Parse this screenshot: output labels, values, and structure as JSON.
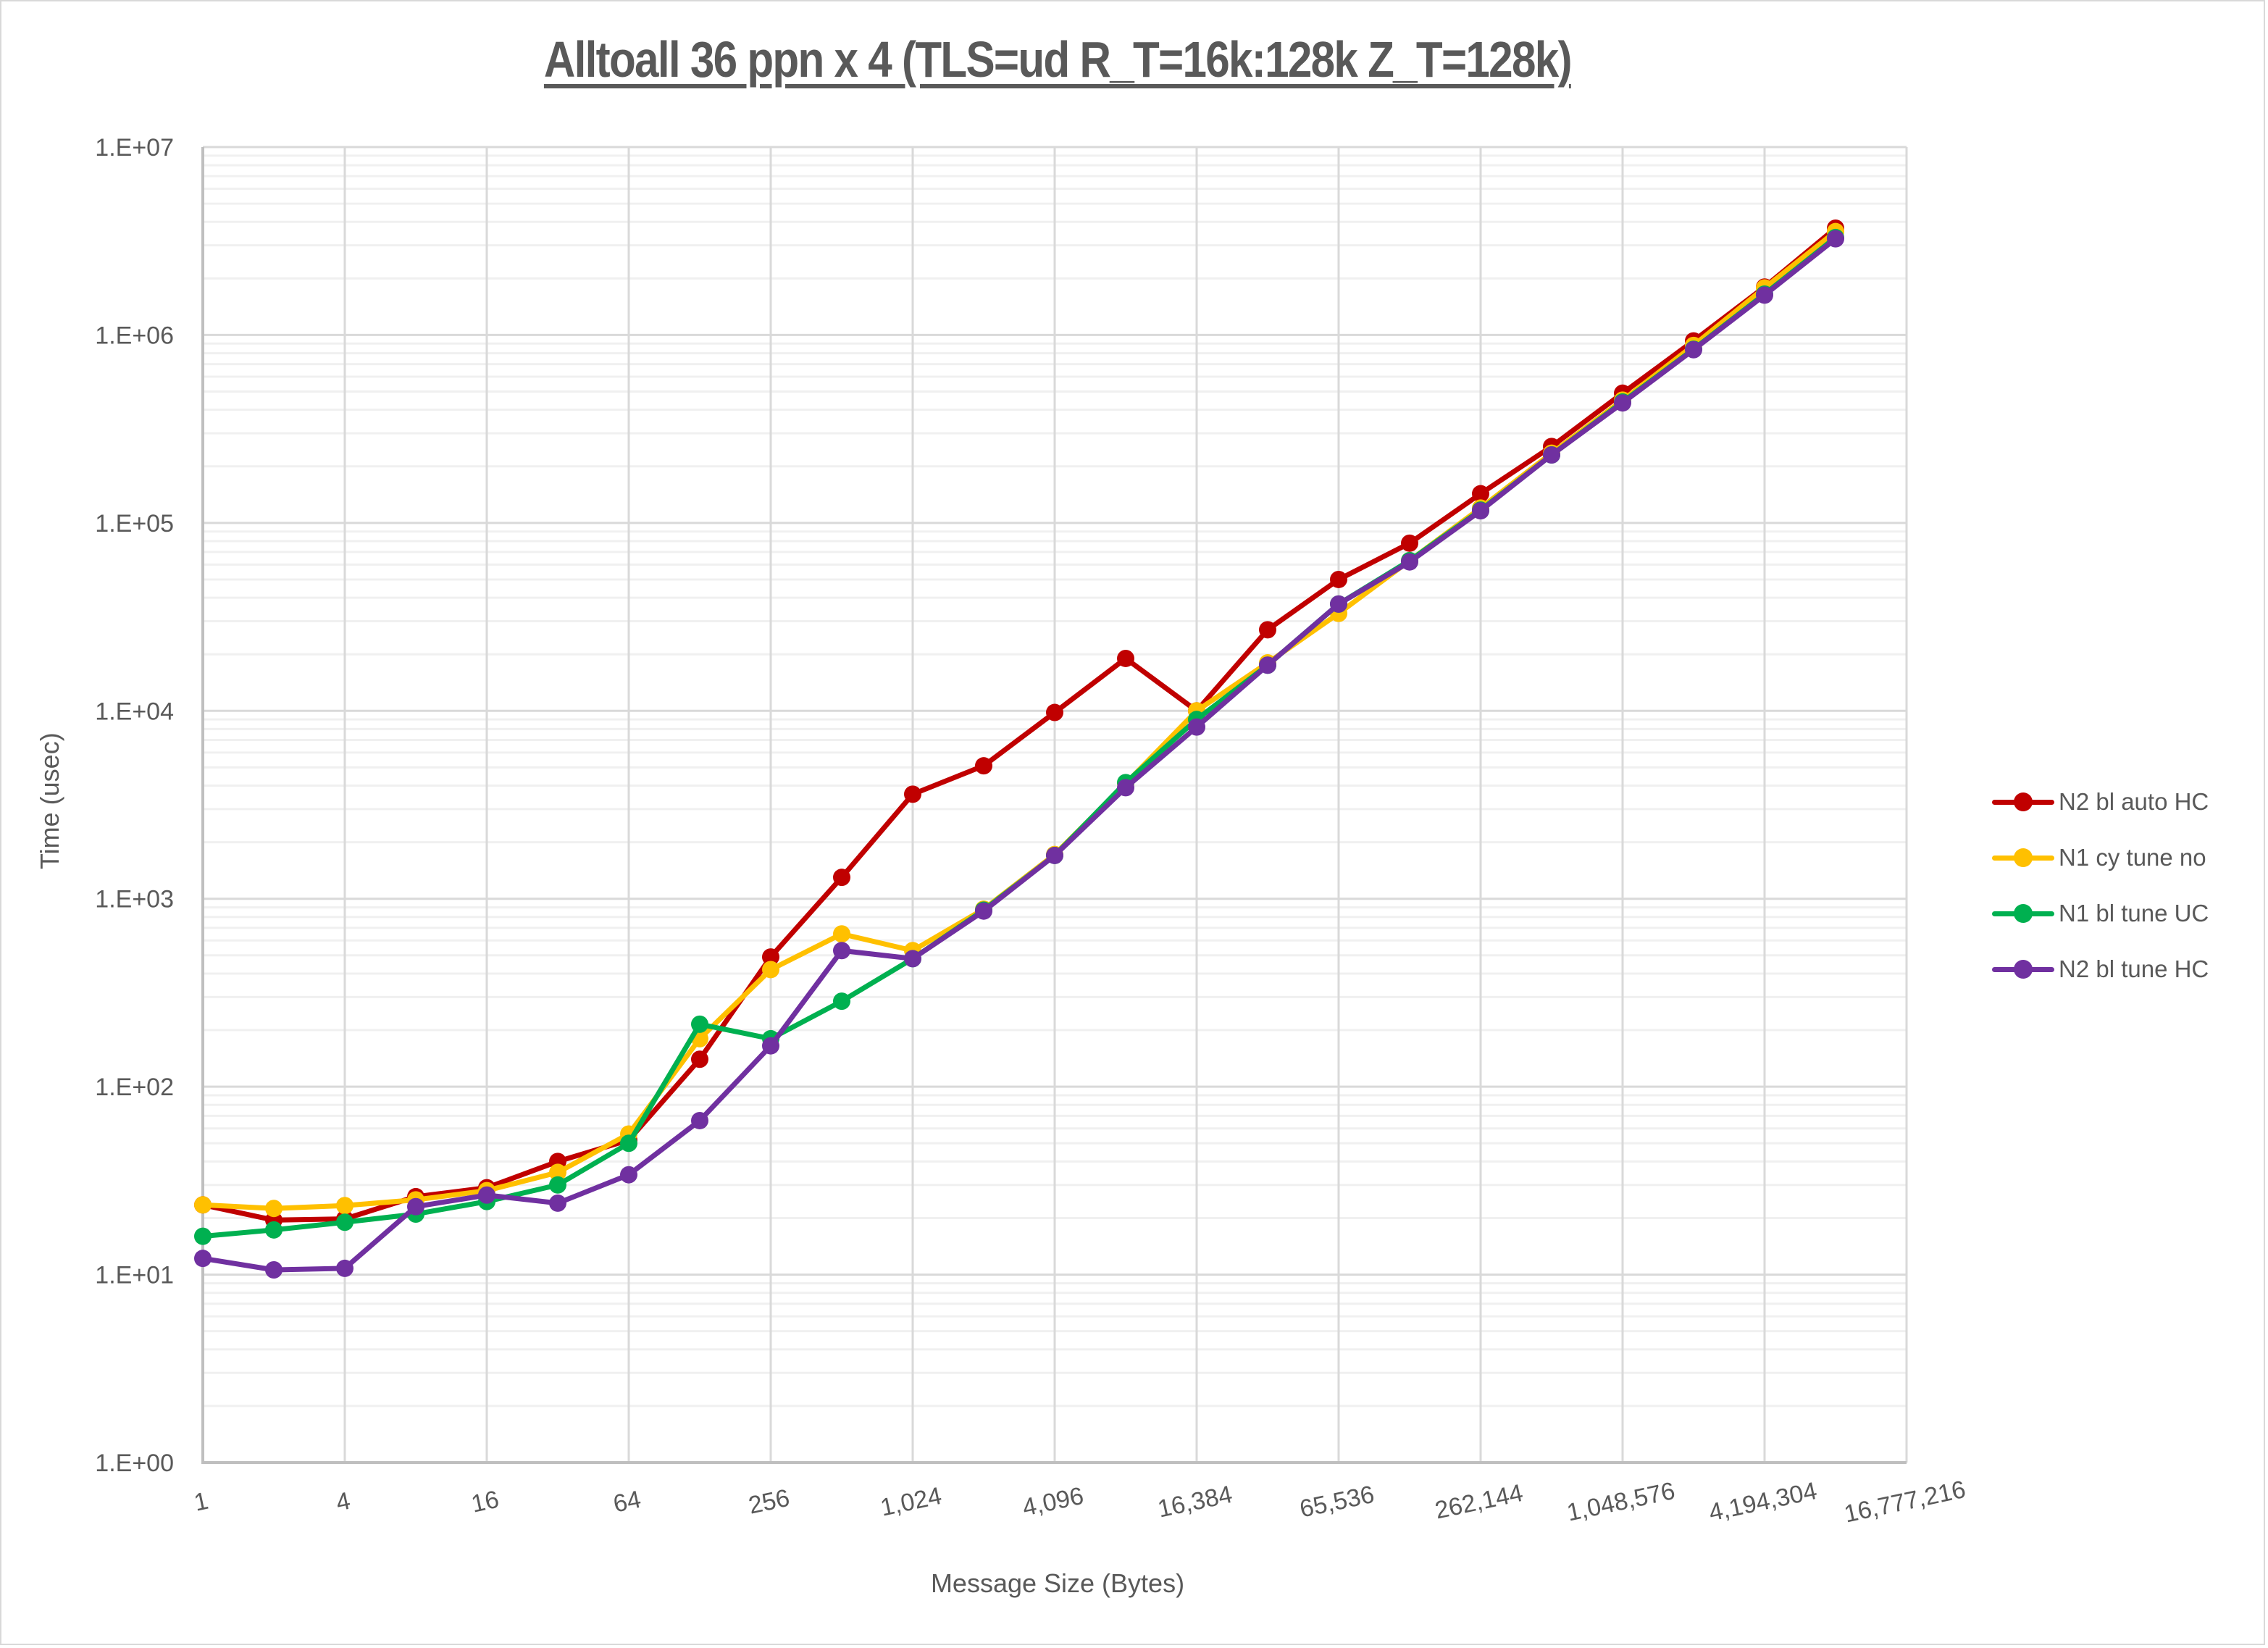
{
  "chart_data": {
    "type": "line",
    "title": "Alltoall 36 ppn x 4 (TLS=ud R_T=16k:128k Z_T=128k)",
    "xlabel": "Message Size (Bytes)",
    "ylabel": "Time (usec)",
    "y_scale": "log",
    "ylim": [
      1,
      10000000
    ],
    "y_ticks": [
      "1.E+00",
      "1.E+01",
      "1.E+02",
      "1.E+03",
      "1.E+04",
      "1.E+05",
      "1.E+06",
      "1.E+07"
    ],
    "x_tick_labels": [
      "1",
      "4",
      "16",
      "64",
      "256",
      "1,024",
      "4,096",
      "16,384",
      "65,536",
      "262,144",
      "1,048,576",
      "4,194,304",
      "16,777,216"
    ],
    "x": [
      1,
      2,
      4,
      8,
      16,
      32,
      64,
      128,
      256,
      512,
      1024,
      2048,
      4096,
      8192,
      16384,
      32768,
      65536,
      131072,
      262144,
      524288,
      1048576,
      2097152,
      4194304,
      8388608
    ],
    "grid": true,
    "legend_position": "right",
    "series": [
      {
        "name": "N2 bl auto HC",
        "color": "#c00000",
        "values": [
          23.5,
          19.5,
          19.8,
          26,
          29,
          40,
          52,
          140,
          490,
          1300,
          3600,
          5100,
          9800,
          19000,
          10000,
          27000,
          50000,
          78000,
          143000,
          255000,
          490000,
          930000,
          1800000,
          3700000
        ]
      },
      {
        "name": "N1 cy tune no",
        "color": "#ffc000",
        "values": [
          23.5,
          22.5,
          23.3,
          25,
          28,
          35,
          56,
          180,
          420,
          650,
          530,
          880,
          1720,
          4100,
          10000,
          18000,
          33000,
          63000,
          120000,
          235000,
          450000,
          880000,
          1780000,
          3550000
        ]
      },
      {
        "name": "N1 bl tune UC",
        "color": "#00b050",
        "values": [
          16,
          17.3,
          19,
          21,
          24.5,
          30,
          50,
          215,
          180,
          285,
          480,
          870,
          1700,
          4150,
          9000,
          17500,
          37000,
          63000,
          117000,
          230000,
          440000,
          840000,
          1650000,
          3300000
        ]
      },
      {
        "name": "N2 bl tune HC",
        "color": "#7030a0",
        "values": [
          12.2,
          10.6,
          10.8,
          23,
          26.5,
          24,
          34,
          66,
          165,
          530,
          480,
          860,
          1700,
          3900,
          8200,
          17500,
          37000,
          62000,
          116000,
          230000,
          435000,
          835000,
          1630000,
          3250000
        ]
      }
    ]
  },
  "legend": {
    "items": [
      {
        "label": "N2 bl auto HC",
        "color": "#c00000"
      },
      {
        "label": "N1 cy tune no",
        "color": "#ffc000"
      },
      {
        "label": "N1 bl tune UC",
        "color": "#00b050"
      },
      {
        "label": "N2 bl tune HC",
        "color": "#7030a0"
      }
    ]
  }
}
